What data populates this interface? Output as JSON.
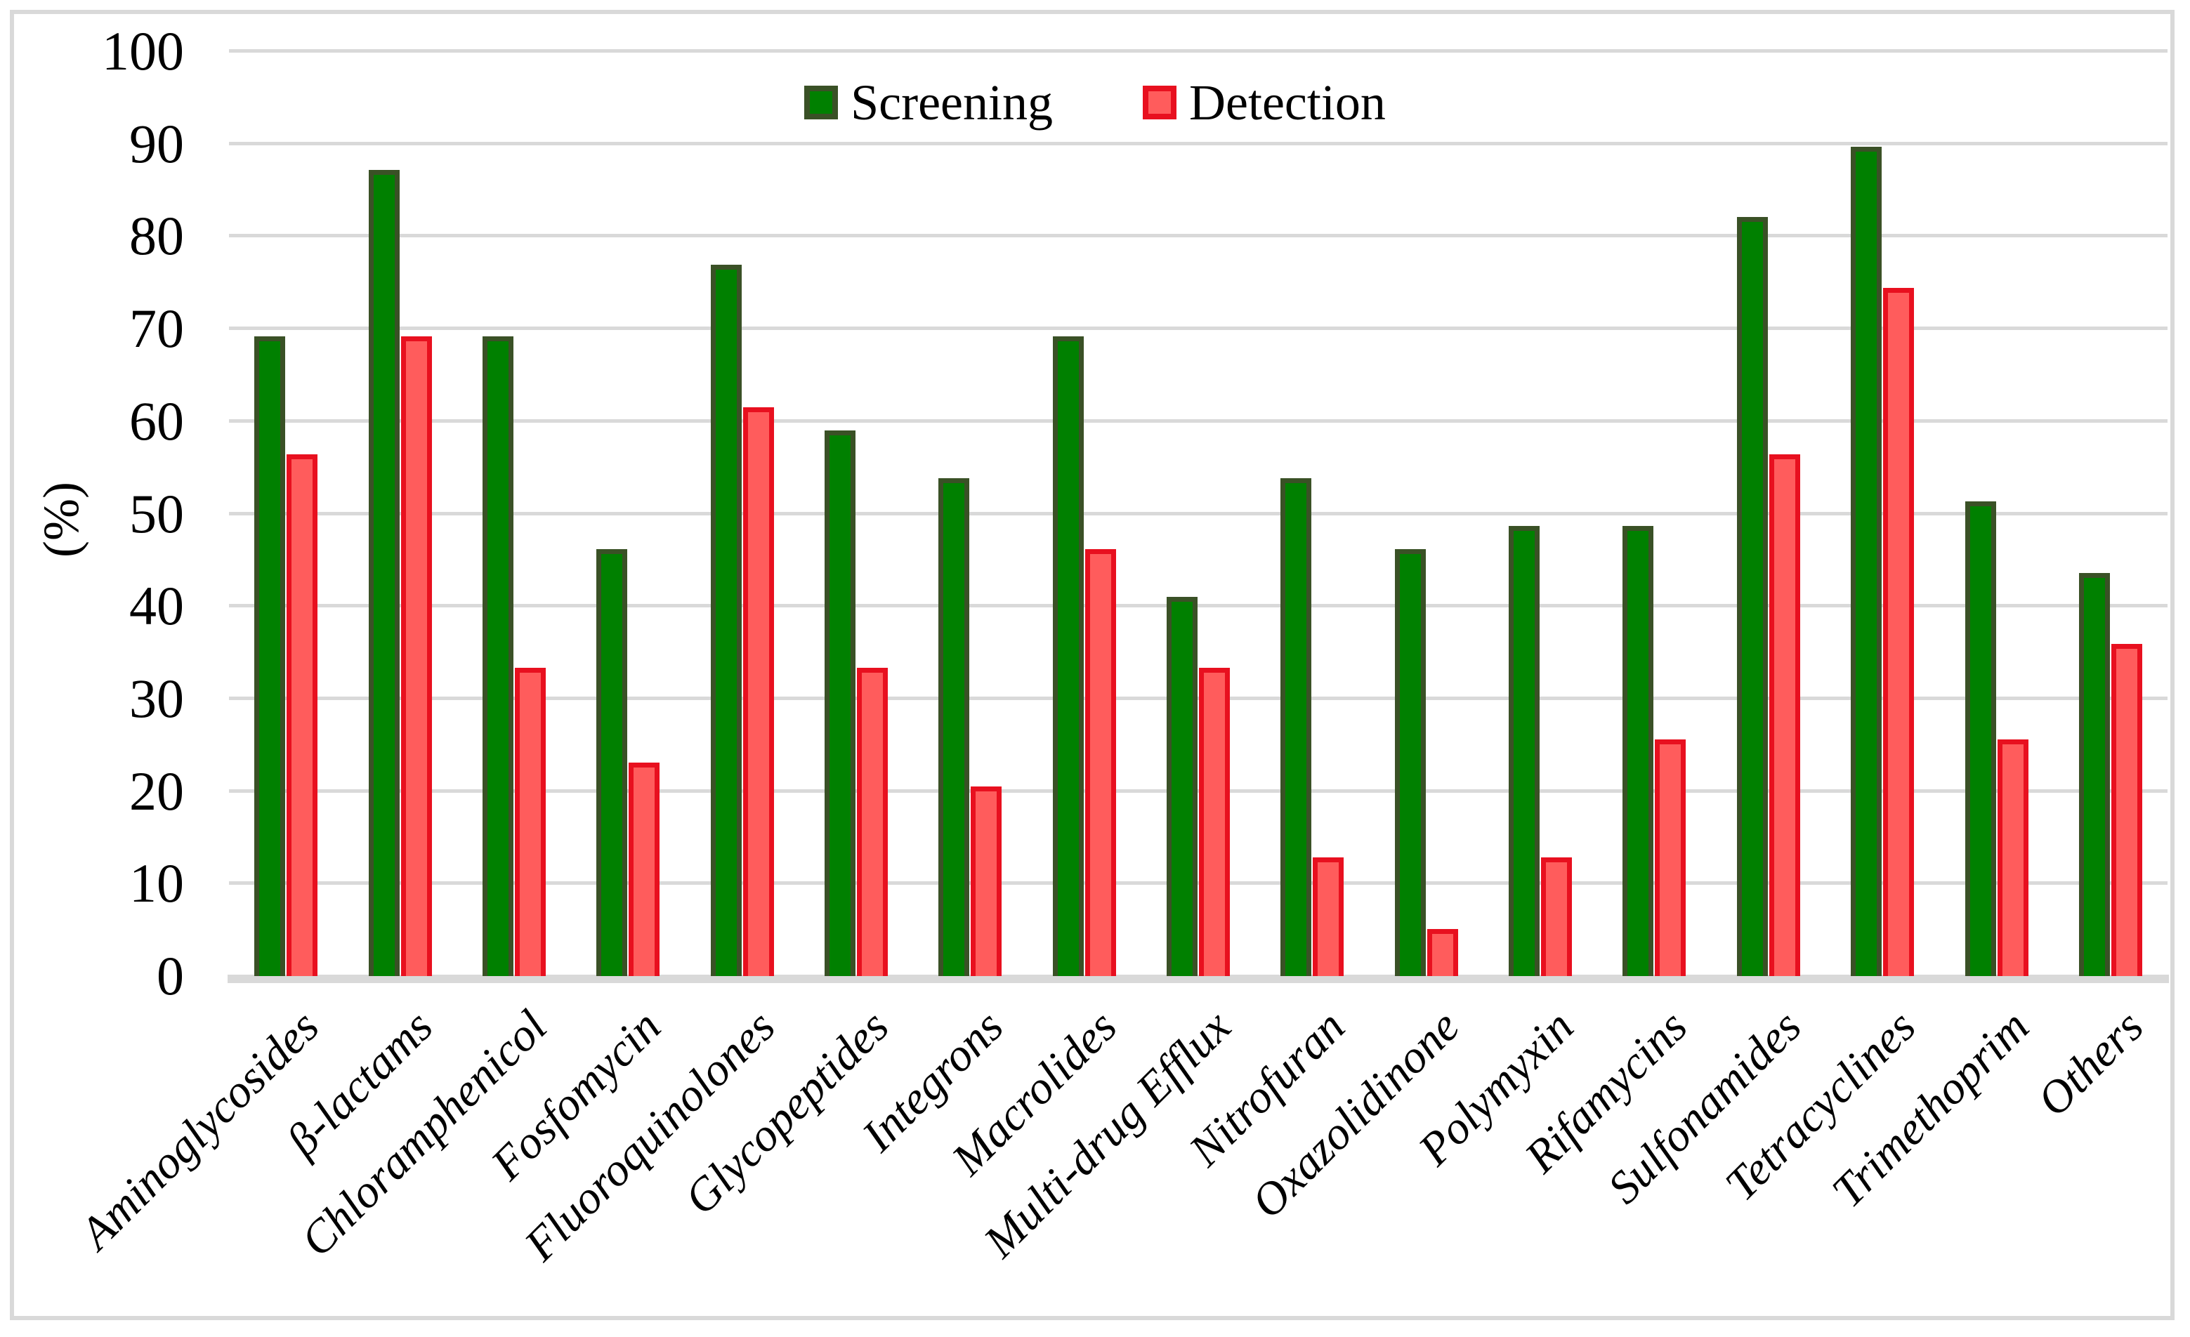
{
  "y_axis_title": "(%)",
  "colors": {
    "screening_fill": "#008000",
    "screening_border": "#3A5126",
    "detection_fill": "#FF5C5C",
    "detection_border": "#E8101F",
    "grid": "#D9D9D9",
    "text": "#000000",
    "background": "#FFFFFF"
  },
  "chart_data": {
    "type": "bar",
    "title": "",
    "xlabel": "",
    "ylabel": "(%)",
    "ylim": [
      0,
      100
    ],
    "ytick_step": 10,
    "yticks": [
      "100",
      "90",
      "80",
      "70",
      "60",
      "50",
      "40",
      "30",
      "20",
      "10",
      "0"
    ],
    "grid": true,
    "legend_position": "top-center",
    "categories": [
      "Aminoglycosides",
      "β-lactams",
      "Chloramphenicol",
      "Fosfomycin",
      "Fluoroquinolones",
      "Glycopeptides",
      "Integrons",
      "Macrolides",
      "Multi-drug Efflux",
      "Nitrofuran",
      "Oxazolidinone",
      "Polymyxin",
      "Rifamycins",
      "Sulfonamides",
      "Tetracyclines",
      "Trimethoprim",
      "Others"
    ],
    "series": [
      {
        "name": "Screening",
        "fill": "#008000",
        "border": "#3A5126",
        "values": [
          69.2,
          87.2,
          69.2,
          46.2,
          76.9,
          59.0,
          53.8,
          69.2,
          41.0,
          53.8,
          46.2,
          48.7,
          48.7,
          82.1,
          89.7,
          51.3,
          43.6
        ]
      },
      {
        "name": "Detection",
        "fill": "#FF5C5C",
        "border": "#E8101F",
        "values": [
          56.4,
          69.2,
          33.3,
          23.1,
          61.5,
          33.3,
          20.5,
          46.2,
          33.3,
          12.8,
          5.1,
          12.8,
          25.6,
          56.4,
          74.4,
          25.6,
          35.9
        ]
      }
    ]
  }
}
